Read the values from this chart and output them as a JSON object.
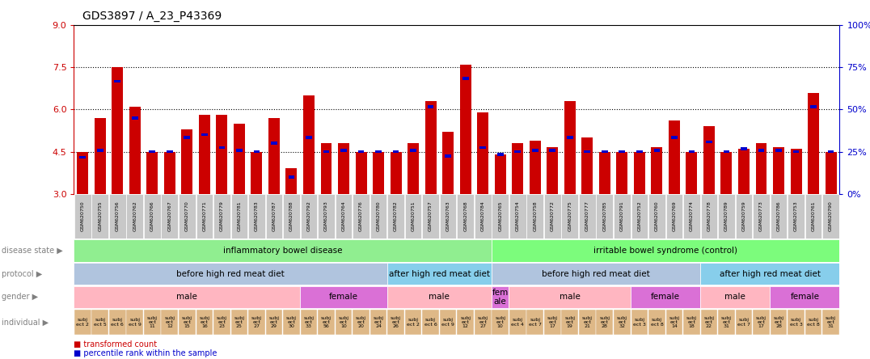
{
  "title": "GDS3897 / A_23_P43369",
  "ylim": [
    3,
    9
  ],
  "yticks": [
    3,
    4.5,
    6,
    7.5,
    9
  ],
  "y2ticks": [
    0,
    25,
    50,
    75,
    100
  ],
  "samples": [
    "GSM620750",
    "GSM620755",
    "GSM620756",
    "GSM620762",
    "GSM620766",
    "GSM620767",
    "GSM620770",
    "GSM620771",
    "GSM620779",
    "GSM620781",
    "GSM620783",
    "GSM620787",
    "GSM620788",
    "GSM620792",
    "GSM620793",
    "GSM620764",
    "GSM620776",
    "GSM620780",
    "GSM620782",
    "GSM620751",
    "GSM620757",
    "GSM620763",
    "GSM620768",
    "GSM620784",
    "GSM620765",
    "GSM620754",
    "GSM620758",
    "GSM620772",
    "GSM620775",
    "GSM620777",
    "GSM620785",
    "GSM620791",
    "GSM620752",
    "GSM620760",
    "GSM620769",
    "GSM620774",
    "GSM620778",
    "GSM620789",
    "GSM620759",
    "GSM620773",
    "GSM620786",
    "GSM620753",
    "GSM620761",
    "GSM620790"
  ],
  "red_values": [
    4.5,
    5.7,
    7.5,
    6.1,
    4.5,
    4.5,
    5.3,
    5.8,
    5.8,
    5.5,
    4.5,
    5.7,
    3.9,
    6.5,
    4.8,
    4.8,
    4.5,
    4.5,
    4.5,
    4.8,
    6.3,
    5.2,
    7.6,
    5.9,
    4.4,
    4.8,
    4.9,
    4.65,
    6.3,
    5.0,
    4.5,
    4.5,
    4.5,
    4.65,
    5.6,
    4.5,
    5.4,
    4.5,
    4.6,
    4.8,
    4.65,
    4.6,
    6.6,
    4.5
  ],
  "blue_values": [
    4.3,
    4.55,
    7.0,
    5.7,
    4.5,
    4.5,
    5.0,
    5.1,
    4.65,
    4.55,
    4.5,
    4.8,
    3.6,
    5.0,
    4.5,
    4.55,
    4.5,
    4.5,
    4.5,
    4.55,
    6.1,
    4.35,
    7.1,
    4.65,
    4.4,
    4.5,
    4.55,
    4.55,
    5.0,
    4.5,
    4.5,
    4.5,
    4.5,
    4.55,
    5.0,
    4.5,
    4.85,
    4.5,
    4.6,
    4.55,
    4.55,
    4.5,
    6.1,
    4.5
  ],
  "disease_state_groups": [
    {
      "label": "inflammatory bowel disease",
      "start": 0,
      "end": 24,
      "color": "#90EE90"
    },
    {
      "label": "irritable bowel syndrome (control)",
      "start": 24,
      "end": 44,
      "color": "#7CFC7C"
    }
  ],
  "protocol_groups": [
    {
      "label": "before high red meat diet",
      "start": 0,
      "end": 18,
      "color": "#B0C4DE"
    },
    {
      "label": "after high red meat diet",
      "start": 18,
      "end": 24,
      "color": "#87CEEB"
    },
    {
      "label": "before high red meat diet",
      "start": 24,
      "end": 36,
      "color": "#B0C4DE"
    },
    {
      "label": "after high red meat diet",
      "start": 36,
      "end": 44,
      "color": "#87CEEB"
    }
  ],
  "gender_groups": [
    {
      "label": "male",
      "start": 0,
      "end": 13,
      "color": "#FFB6C1"
    },
    {
      "label": "female",
      "start": 13,
      "end": 18,
      "color": "#DA70D6"
    },
    {
      "label": "male",
      "start": 18,
      "end": 24,
      "color": "#FFB6C1"
    },
    {
      "label": "fem\nale",
      "start": 24,
      "end": 25,
      "color": "#DA70D6"
    },
    {
      "label": "male",
      "start": 25,
      "end": 32,
      "color": "#FFB6C1"
    },
    {
      "label": "female",
      "start": 32,
      "end": 36,
      "color": "#DA70D6"
    },
    {
      "label": "male",
      "start": 36,
      "end": 40,
      "color": "#FFB6C1"
    },
    {
      "label": "female",
      "start": 40,
      "end": 44,
      "color": "#DA70D6"
    }
  ],
  "individual_labels": [
    "subj\nect 2",
    "subj\nect 5",
    "subj\nect 6",
    "subj\nect 9",
    "subj\nect\n11",
    "subj\nect\n12",
    "subj\nect\n15",
    "subj\nect\n16",
    "subj\nect\n23",
    "subj\nect\n25",
    "subj\nect\n27",
    "subj\nect\n29",
    "subj\nect\n30",
    "subj\nect\n33",
    "subj\nect\n56",
    "subj\nect\n10",
    "subj\nect\n20",
    "subj\nect\n24",
    "subj\nect\n26",
    "subj\nect 2",
    "subj\nect 6",
    "subj\nect 9",
    "subj\nect\n12",
    "subj\nect\n27",
    "subj\nect\n10",
    "subj\nect 4",
    "subj\nect 7",
    "subj\nect\n17",
    "subj\nect\n19",
    "subj\nect\n21",
    "subj\nect\n28",
    "subj\nect\n32",
    "subj\nect 3",
    "subj\nect 8",
    "subj\nect\n14",
    "subj\nect\n18",
    "subj\nect\n22",
    "subj\nect\n31",
    "subj\nect 7",
    "subj\nect\n17",
    "subj\nect\n28",
    "subj\nect 3",
    "subj\nect 8",
    "subj\nect\n31"
  ],
  "bar_color": "#CC0000",
  "dot_color": "#0000CC",
  "background_color": "#ffffff",
  "axis_label_color": "#CC0000",
  "right_axis_color": "#0000CC",
  "row_label_color": "#808080",
  "xticklabel_bg": "#C8C8C8",
  "ind_color": "#DEB887"
}
